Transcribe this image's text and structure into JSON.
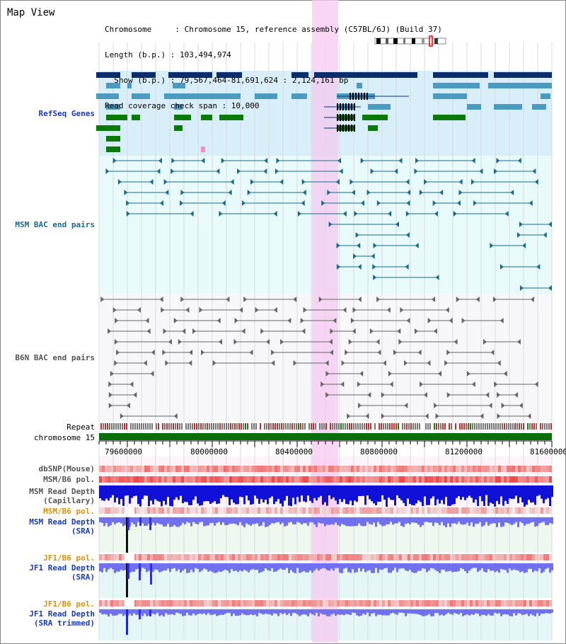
{
  "header": {
    "title": "Map View",
    "info_lines": [
      "Chromosome     : Chromosome 15, reference assembly (C57BL/6J) (Build 37)",
      "Length (b.p.) : 103,494,974",
      "  Show (b.p.) : 79,567,464-81,691,624 : 2,124,161 bp",
      "Read coverage check span : 10,000"
    ]
  },
  "tracks": {
    "refseq": "RefSeq Genes",
    "msm_bac": "MSM BAC end pairs",
    "b6n_bac": "B6N BAC end pairs",
    "repeat": "Repeat",
    "chromosome": "chromosome 15",
    "dbsnp": "dbSNP(Mouse)",
    "msm_b6_pol_1": "MSM/B6 pol.",
    "msm_read_depth_cap": "MSM Read Depth\n(Capillary)",
    "msm_b6_pol_2": "MSM/B6 pol.",
    "msm_read_depth_sra": "MSM Read Depth\n(SRA)",
    "jf1_b6_pol_1": "JF1/B6 pol.",
    "jf1_read_depth_sra": "JF1 Read Depth\n(SRA)",
    "jf1_b6_pol_2": "JF1/B6 pol.",
    "jf1_read_depth_trim": "JF1 Read Depth\n(SRA trimmed)"
  },
  "axis": {
    "ticks": [
      "79600000",
      "80000000",
      "80400000",
      "80800000",
      "81200000",
      "81600000"
    ]
  },
  "colors": {
    "highlight": "#f6c8f0",
    "refseq_bg": "#d8eef8",
    "bac_bg": "#e8fafa",
    "gene_dark": "#0b2d6b",
    "gene_mid": "#4a9bbf",
    "gene_green": "#0a7a0a",
    "chromosome": "#0a6e0a"
  }
}
